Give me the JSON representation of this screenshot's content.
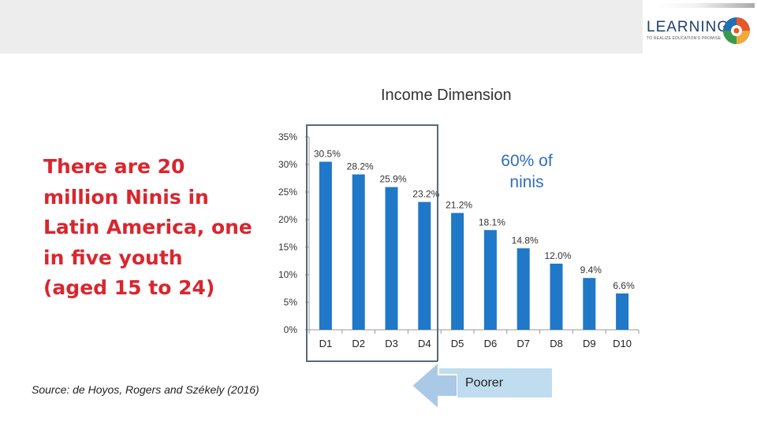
{
  "header": {
    "logo_text": "LEARNING",
    "logo_tagline": "TO REALIZE EDUCATION'S PROMISE"
  },
  "headline": "There are 20 million Ninis in Latin America, one in five youth (aged 15 to 24)",
  "source": "Source: de Hoyos, Rogers and Székely (2016)",
  "annotation": "60% of ninis",
  "poorer_label": "Poorer",
  "colors": {
    "bar": "#1f78c8",
    "headline": "#d9262e",
    "annotation": "#2f6fbf",
    "highlight_box": "#5a6878",
    "poorer_box": "#c0dcef",
    "arrow": "#a9c9e6"
  },
  "chart_data": {
    "type": "bar",
    "title": "Income Dimension",
    "categories": [
      "D1",
      "D2",
      "D3",
      "D4",
      "D5",
      "D6",
      "D7",
      "D8",
      "D9",
      "D10"
    ],
    "values": [
      30.5,
      28.2,
      25.9,
      23.2,
      21.2,
      18.1,
      14.8,
      12.0,
      9.4,
      6.6
    ],
    "value_labels": [
      "30.5%",
      "28.2%",
      "25.9%",
      "23.2%",
      "21.2%",
      "18.1%",
      "14.8%",
      "12.0%",
      "9.4%",
      "6.6%"
    ],
    "yticks": [
      0,
      5,
      10,
      15,
      20,
      25,
      30,
      35
    ],
    "ytick_labels": [
      "0%",
      "5%",
      "10%",
      "15%",
      "20%",
      "25%",
      "30%",
      "35%"
    ],
    "ylim": [
      0,
      35
    ],
    "highlighted_categories": [
      "D1",
      "D2",
      "D3",
      "D4"
    ],
    "grid": false,
    "legend": "none"
  }
}
